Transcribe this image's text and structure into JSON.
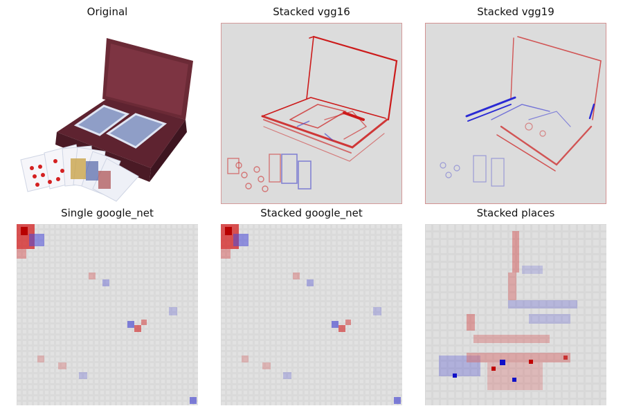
{
  "figure": {
    "panels": [
      {
        "title": "Original",
        "kind": "photo",
        "description_icon": "card-box-photo"
      },
      {
        "title": "Stacked vgg16",
        "kind": "saliency-edges"
      },
      {
        "title": "Stacked vgg19",
        "kind": "saliency-edges"
      },
      {
        "title": "Single google_net",
        "kind": "saliency-grid"
      },
      {
        "title": "Stacked google_net",
        "kind": "saliency-grid"
      },
      {
        "title": "Stacked places",
        "kind": "saliency-blocks"
      }
    ],
    "colors": {
      "background_map": "#dcdcdc",
      "positive": "#d40000",
      "negative": "#2a2ad4",
      "box_wood": "#6b2a36",
      "card_back": "#8f9ec7"
    }
  }
}
